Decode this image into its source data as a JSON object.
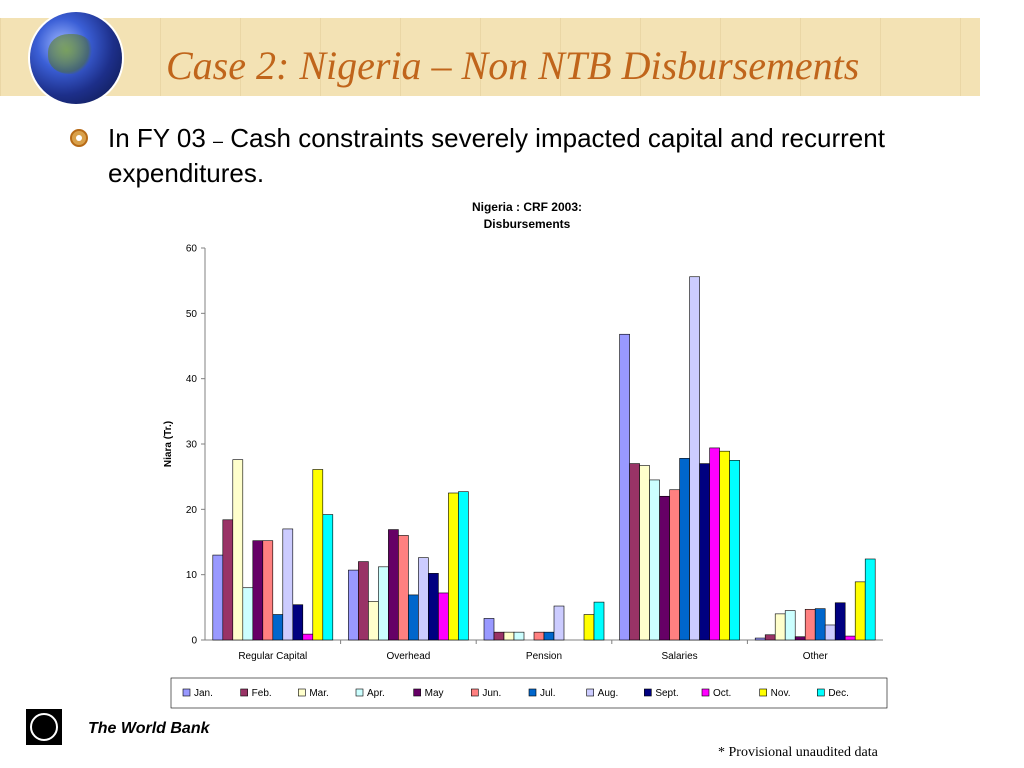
{
  "slide": {
    "title": "Case 2: Nigeria – Non NTB Disbursements",
    "bullet_main": "In FY 03 ",
    "bullet_dash": "–",
    "bullet_rest": " Cash constraints severely impacted capital and recurrent expenditures.",
    "footer_brand": "The World Bank",
    "footnote": "* Provisional unaudited data"
  },
  "chart_data": {
    "type": "bar",
    "title_lines": [
      "Nigeria : CRF 2003:",
      "Disbursements"
    ],
    "ylabel": "Niara (Tr.)",
    "xlabel": "",
    "ylim": [
      0,
      60
    ],
    "yticks": [
      0,
      10,
      20,
      30,
      40,
      50,
      60
    ],
    "grid": false,
    "legend_position": "bottom",
    "categories": [
      "Regular Capital",
      "Overhead",
      "Pension",
      "Salaries",
      "Other"
    ],
    "series": [
      {
        "name": "Jan.",
        "color": "#9999ff",
        "values": [
          13.0,
          10.7,
          3.3,
          46.8,
          0.3
        ]
      },
      {
        "name": "Feb.",
        "color": "#993366",
        "values": [
          18.4,
          12.0,
          1.2,
          27.0,
          0.8
        ]
      },
      {
        "name": "Mar.",
        "color": "#ffffcc",
        "values": [
          27.6,
          5.9,
          1.2,
          26.7,
          4.0
        ]
      },
      {
        "name": "Apr.",
        "color": "#ccffff",
        "values": [
          8.0,
          11.2,
          1.2,
          24.5,
          4.5
        ]
      },
      {
        "name": "May",
        "color": "#660066",
        "values": [
          15.2,
          16.9,
          0,
          22.0,
          0.5
        ]
      },
      {
        "name": "Jun.",
        "color": "#ff8080",
        "values": [
          15.2,
          16.0,
          1.2,
          23.0,
          4.7
        ]
      },
      {
        "name": "Jul.",
        "color": "#0066cc",
        "values": [
          3.9,
          6.9,
          1.2,
          27.8,
          4.8
        ]
      },
      {
        "name": "Aug.",
        "color": "#ccccff",
        "values": [
          17.0,
          12.6,
          5.2,
          55.6,
          2.3
        ]
      },
      {
        "name": "Sept.",
        "color": "#000080",
        "values": [
          5.4,
          10.2,
          0,
          27.0,
          5.7
        ]
      },
      {
        "name": "Oct.",
        "color": "#ff00ff",
        "values": [
          0.9,
          7.2,
          0,
          29.4,
          0.6
        ]
      },
      {
        "name": "Nov.",
        "color": "#ffff00",
        "values": [
          26.1,
          22.5,
          3.9,
          28.9,
          8.9
        ]
      },
      {
        "name": "Dec.",
        "color": "#00ffff",
        "values": [
          19.2,
          22.7,
          5.8,
          27.5,
          12.4
        ]
      }
    ]
  }
}
